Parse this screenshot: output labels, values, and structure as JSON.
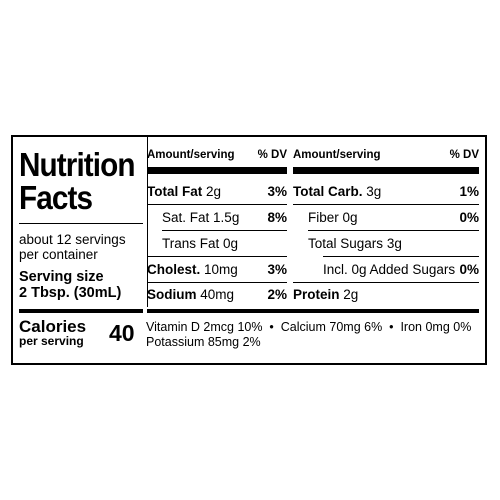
{
  "label": {
    "title_line1": "Nutrition",
    "title_line2": "Facts",
    "servings_line1": "about 12 servings",
    "servings_line2": "per container",
    "serving_size_label": "Serving size",
    "serving_size_value": "2 Tbsp. (30mL)",
    "calories_label": "Calories",
    "calories_sub": "per serving",
    "calories_value": "40"
  },
  "headers": {
    "left_amount": "Amount/serving",
    "left_dv": "% DV",
    "right_amount": "Amount/serving",
    "right_dv": "% DV"
  },
  "left_rows": [
    {
      "name": "Total Fat",
      "amount": "2g",
      "dv": "3%"
    },
    {
      "name": "Sat. Fat",
      "amount": "1.5g",
      "dv": "8%"
    },
    {
      "name": "Trans Fat",
      "amount": "0g",
      "dv": ""
    },
    {
      "name": "Cholest.",
      "amount": "10mg",
      "dv": "3%"
    },
    {
      "name": "Sodium",
      "amount": "40mg",
      "dv": "2%"
    }
  ],
  "right_rows": [
    {
      "name": "Total Carb.",
      "amount": "3g",
      "dv": "1%"
    },
    {
      "name": "Fiber",
      "amount": "0g",
      "dv": "0%"
    },
    {
      "name": "Total Sugars",
      "amount": "3g",
      "dv": ""
    },
    {
      "name": "Incl. 0g Added Sugars",
      "amount": "",
      "dv": "0%"
    },
    {
      "name": "Protein",
      "amount": "2g",
      "dv": ""
    }
  ],
  "micronutrients_line1": "Vitamin D 2mcg 10%  •  Calcium 70mg 6%  •  Iron 0mg 0%",
  "micronutrients_line2": "Potassium 85mg 2%"
}
